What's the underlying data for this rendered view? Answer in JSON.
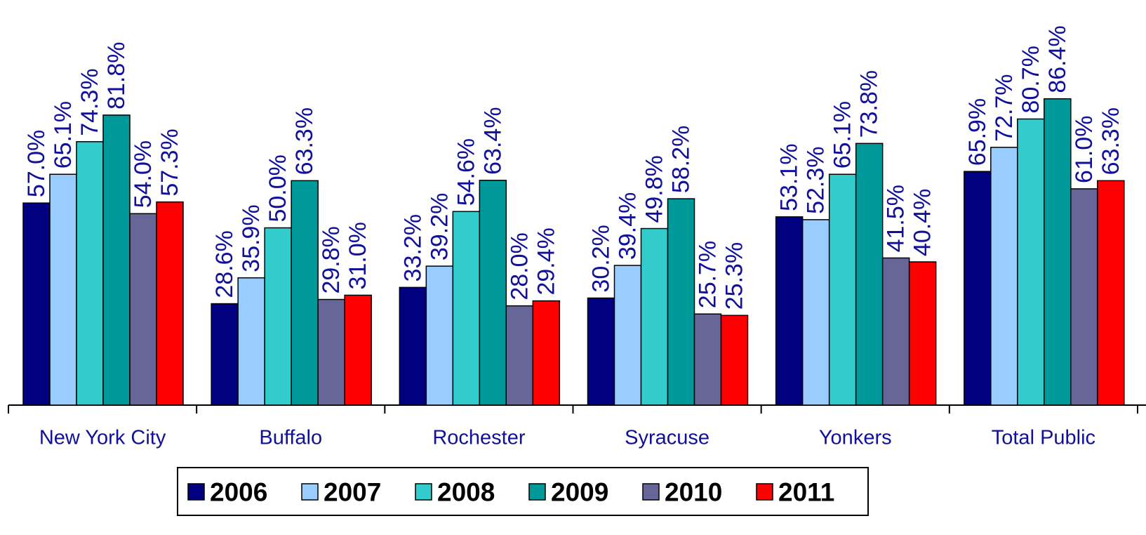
{
  "chart_data": {
    "type": "bar",
    "categories": [
      "New York City",
      "Buffalo",
      "Rochester",
      "Syracuse",
      "Yonkers",
      "Total Public"
    ],
    "series": [
      {
        "name": "2006",
        "color": "#000080",
        "values": [
          57.0,
          28.6,
          33.2,
          30.2,
          53.1,
          65.9
        ],
        "value_labels": [
          "57.0%",
          "28.6%",
          "33.2%",
          "30.2%",
          "53.1%",
          "65.9%"
        ]
      },
      {
        "name": "2007",
        "color": "#99ccff",
        "values": [
          65.1,
          35.9,
          39.2,
          39.4,
          52.3,
          72.7
        ],
        "value_labels": [
          "65.1%",
          "35.9%",
          "39.2%",
          "39.4%",
          "52.3%",
          "72.7%"
        ]
      },
      {
        "name": "2008",
        "color": "#33cccc",
        "values": [
          74.3,
          50.0,
          54.6,
          49.8,
          65.1,
          80.7
        ],
        "value_labels": [
          "74.3%",
          "50.0%",
          "54.6%",
          "49.8%",
          "65.1%",
          "80.7%"
        ]
      },
      {
        "name": "2009",
        "color": "#009999",
        "values": [
          81.8,
          63.3,
          63.4,
          58.2,
          73.8,
          86.4
        ],
        "value_labels": [
          "81.8%",
          "63.3%",
          "63.4%",
          "58.2%",
          "73.8%",
          "86.4%"
        ]
      },
      {
        "name": "2010",
        "color": "#666699",
        "values": [
          54.0,
          29.8,
          28.0,
          25.7,
          41.5,
          61.0
        ],
        "value_labels": [
          "54.0%",
          "29.8%",
          "28.0%",
          "25.7%",
          "41.5%",
          "61.0%"
        ]
      },
      {
        "name": "2011",
        "color": "#ff0000",
        "values": [
          57.3,
          31.0,
          29.4,
          25.3,
          40.4,
          63.3
        ],
        "value_labels": [
          "57.3%",
          "31.0%",
          "29.4%",
          "25.3%",
          "40.4%",
          "63.3%"
        ]
      }
    ],
    "legend": "bottom"
  }
}
